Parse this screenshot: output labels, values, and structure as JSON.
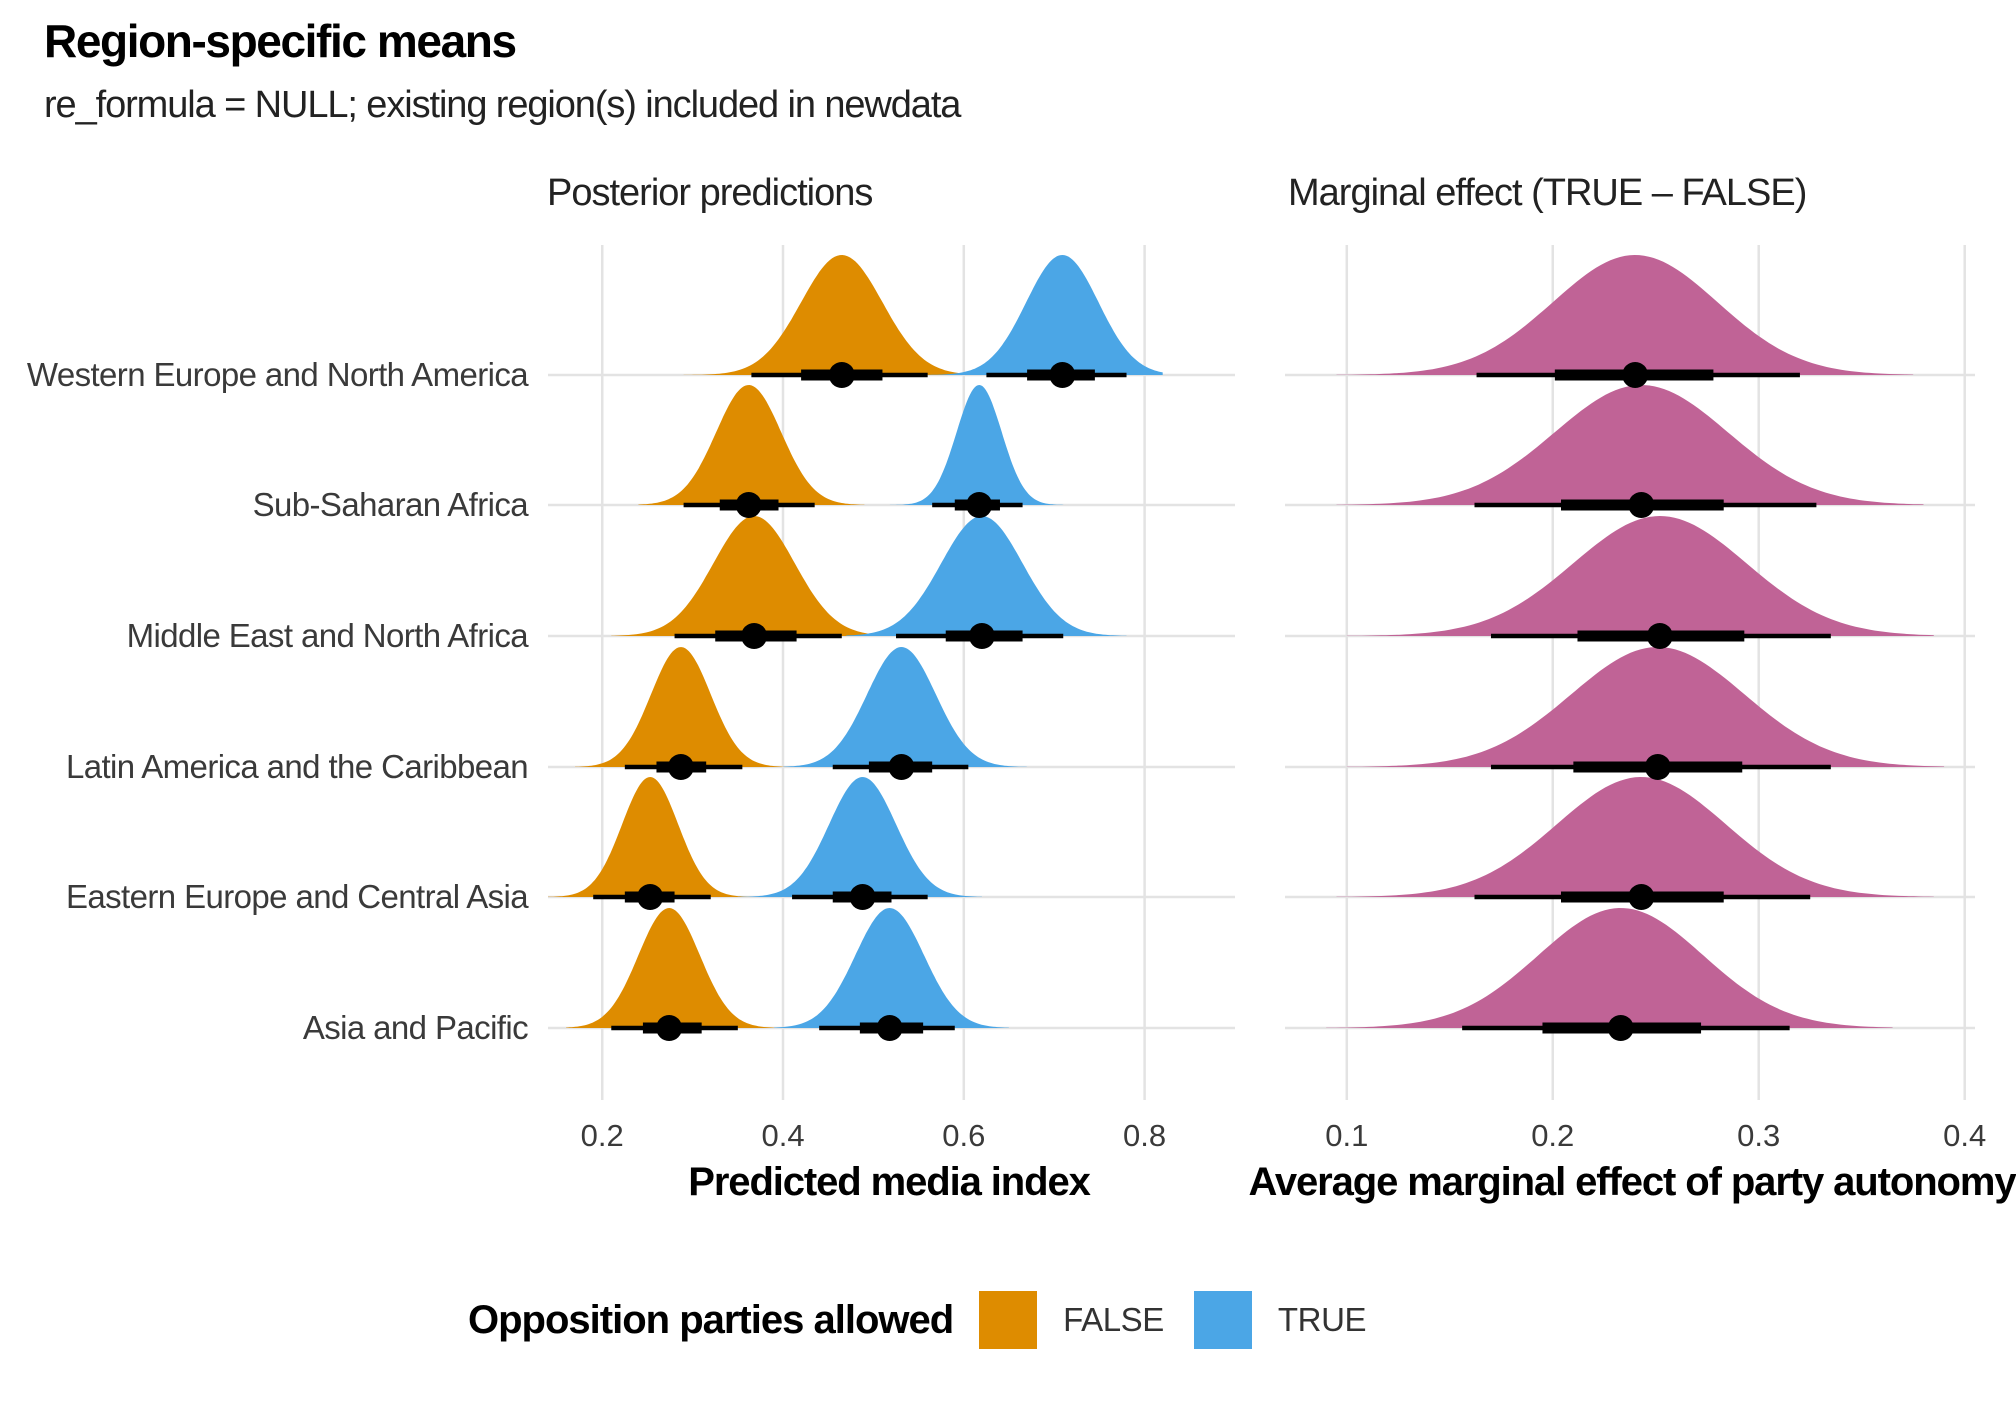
{
  "title": "Region-specific means",
  "subtitle": "re_formula = NULL; existing region(s) included in newdata",
  "legend": {
    "title": "Opposition parties allowed",
    "items": [
      {
        "label": "FALSE",
        "color": "#DE8C00"
      },
      {
        "label": "TRUE",
        "color": "#4BA6E6"
      }
    ]
  },
  "chart_data": [
    {
      "type": "density",
      "title": "Posterior predictions",
      "xlabel": "Predicted media index",
      "xlim": [
        0.14,
        0.9
      ],
      "xticks": [
        0.2,
        0.4,
        0.6,
        0.8
      ],
      "xtick_labels": [
        "0.2",
        "0.4",
        "0.6",
        "0.8"
      ],
      "grid": true,
      "categories": [
        "Western Europe and North America",
        "Sub-Saharan Africa",
        "Middle East and North Africa",
        "Latin America and the Caribbean",
        "Eastern Europe and Central Asia",
        "Asia and Pacific"
      ],
      "series": [
        {
          "name": "FALSE",
          "color": "#DE8C00",
          "points": [
            {
              "category": "Western Europe and North America",
              "median": 0.465,
              "q66": [
                0.42,
                0.51
              ],
              "q95": [
                0.365,
                0.56
              ],
              "sd": 0.045,
              "min": 0.29,
              "max": 0.63
            },
            {
              "category": "Sub-Saharan Africa",
              "median": 0.362,
              "q66": [
                0.33,
                0.395
              ],
              "q95": [
                0.29,
                0.435
              ],
              "sd": 0.036,
              "min": 0.24,
              "max": 0.49
            },
            {
              "category": "Middle East and North Africa",
              "median": 0.368,
              "q66": [
                0.325,
                0.415
              ],
              "q95": [
                0.28,
                0.465
              ],
              "sd": 0.045,
              "min": 0.21,
              "max": 0.54
            },
            {
              "category": "Latin America and the Caribbean",
              "median": 0.287,
              "q66": [
                0.26,
                0.315
              ],
              "q95": [
                0.225,
                0.355
              ],
              "sd": 0.033,
              "min": 0.17,
              "max": 0.41
            },
            {
              "category": "Eastern Europe and Central Asia",
              "median": 0.253,
              "q66": [
                0.225,
                0.28
              ],
              "q95": [
                0.19,
                0.32
              ],
              "sd": 0.031,
              "min": 0.14,
              "max": 0.37
            },
            {
              "category": "Asia and Pacific",
              "median": 0.274,
              "q66": [
                0.245,
                0.31
              ],
              "q95": [
                0.21,
                0.35
              ],
              "sd": 0.034,
              "min": 0.16,
              "max": 0.41
            }
          ]
        },
        {
          "name": "TRUE",
          "color": "#4BA6E6",
          "points": [
            {
              "category": "Western Europe and North America",
              "median": 0.709,
              "q66": [
                0.67,
                0.745
              ],
              "q95": [
                0.625,
                0.78
              ],
              "sd": 0.04,
              "min": 0.56,
              "max": 0.82
            },
            {
              "category": "Sub-Saharan Africa",
              "median": 0.617,
              "q66": [
                0.59,
                0.64
              ],
              "q95": [
                0.565,
                0.665
              ],
              "sd": 0.025,
              "min": 0.5,
              "max": 0.71
            },
            {
              "category": "Middle East and North Africa",
              "median": 0.62,
              "q66": [
                0.58,
                0.665
              ],
              "q95": [
                0.525,
                0.71
              ],
              "sd": 0.045,
              "min": 0.47,
              "max": 0.78
            },
            {
              "category": "Latin America and the Caribbean",
              "median": 0.531,
              "q66": [
                0.495,
                0.565
              ],
              "q95": [
                0.455,
                0.605
              ],
              "sd": 0.038,
              "min": 0.4,
              "max": 0.67
            },
            {
              "category": "Eastern Europe and Central Asia",
              "median": 0.488,
              "q66": [
                0.455,
                0.52
              ],
              "q95": [
                0.41,
                0.56
              ],
              "sd": 0.037,
              "min": 0.35,
              "max": 0.62
            },
            {
              "category": "Asia and Pacific",
              "median": 0.518,
              "q66": [
                0.485,
                0.555
              ],
              "q95": [
                0.44,
                0.59
              ],
              "sd": 0.038,
              "min": 0.39,
              "max": 0.65
            }
          ]
        }
      ]
    },
    {
      "type": "density",
      "title": "Marginal effect (TRUE – FALSE)",
      "xlabel": "Average marginal effect of party autonomy",
      "xlim": [
        0.07,
        0.405
      ],
      "xticks": [
        0.1,
        0.2,
        0.3,
        0.4
      ],
      "xtick_labels": [
        "0.1",
        "0.2",
        "0.3",
        "0.4"
      ],
      "grid": true,
      "categories": [
        "Western Europe and North America",
        "Sub-Saharan Africa",
        "Middle East and North Africa",
        "Latin America and the Caribbean",
        "Eastern Europe and Central Asia",
        "Asia and Pacific"
      ],
      "series": [
        {
          "name": "TRUE – FALSE",
          "color": "#C06396",
          "points": [
            {
              "category": "Western Europe and North America",
              "median": 0.24,
              "q66": [
                0.201,
                0.278
              ],
              "q95": [
                0.163,
                0.32
              ],
              "sd": 0.04,
              "min": 0.095,
              "max": 0.375
            },
            {
              "category": "Sub-Saharan Africa",
              "median": 0.243,
              "q66": [
                0.204,
                0.283
              ],
              "q95": [
                0.162,
                0.328
              ],
              "sd": 0.042,
              "min": 0.095,
              "max": 0.38
            },
            {
              "category": "Middle East and North Africa",
              "median": 0.252,
              "q66": [
                0.212,
                0.293
              ],
              "q95": [
                0.17,
                0.335
              ],
              "sd": 0.042,
              "min": 0.1,
              "max": 0.385
            },
            {
              "category": "Latin America and the Caribbean",
              "median": 0.251,
              "q66": [
                0.21,
                0.292
              ],
              "q95": [
                0.17,
                0.335
              ],
              "sd": 0.042,
              "min": 0.1,
              "max": 0.39
            },
            {
              "category": "Eastern Europe and Central Asia",
              "median": 0.243,
              "q66": [
                0.204,
                0.283
              ],
              "q95": [
                0.162,
                0.325
              ],
              "sd": 0.041,
              "min": 0.095,
              "max": 0.385
            },
            {
              "category": "Asia and Pacific",
              "median": 0.233,
              "q66": [
                0.195,
                0.272
              ],
              "q95": [
                0.156,
                0.315
              ],
              "sd": 0.04,
              "min": 0.09,
              "max": 0.365
            }
          ]
        }
      ]
    }
  ]
}
